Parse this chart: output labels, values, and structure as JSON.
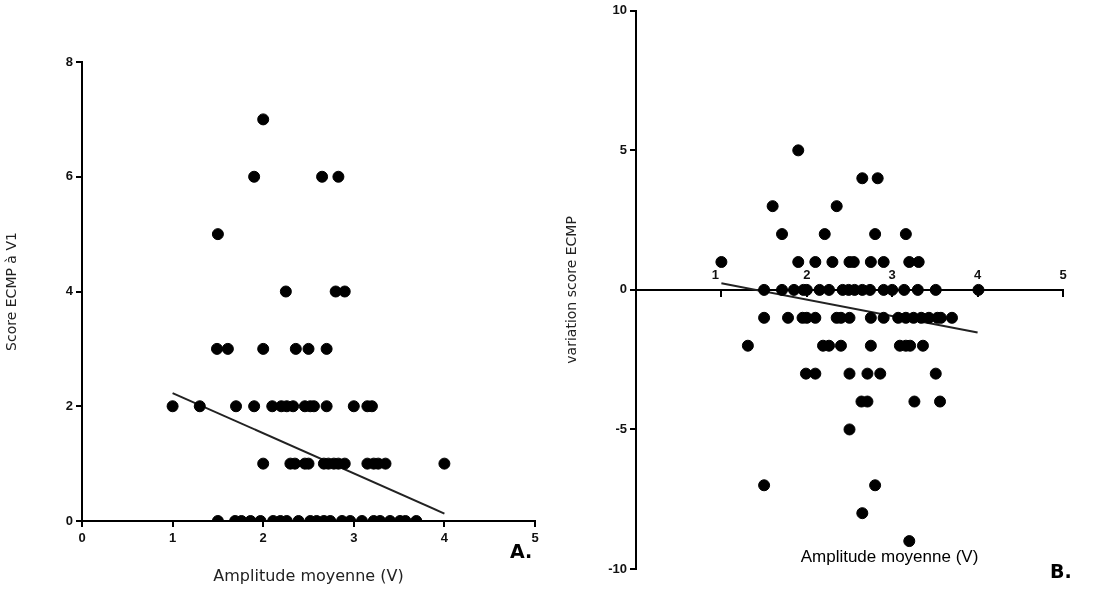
{
  "chart_data": [
    {
      "type": "scatter",
      "xlabel": "Amplitude moyenne (V)",
      "ylabel": "Score ECMP à V1",
      "xlim": [
        0,
        5
      ],
      "xticks": [
        0,
        1,
        2,
        3,
        4,
        5
      ],
      "ylim": [
        0,
        8
      ],
      "yticks": [
        0,
        2,
        4,
        6,
        8
      ],
      "grid": false,
      "legend": false,
      "marker": "circle",
      "annotations": [
        "A."
      ],
      "series": [
        {
          "type": "scatter",
          "color": "#000000",
          "x": [
            2.0,
            1.9,
            2.65,
            2.83,
            1.5,
            2.25,
            2.8,
            2.9,
            1.49,
            1.61,
            2.0,
            2.36,
            2.5,
            2.7,
            1.0,
            1.3,
            1.7,
            1.9,
            2.1,
            2.2,
            2.26,
            2.33,
            2.46,
            2.52,
            2.56,
            2.7,
            3.0,
            3.15,
            3.2,
            2.0,
            2.3,
            2.35,
            2.46,
            2.5,
            2.67,
            2.72,
            2.78,
            2.83,
            2.9,
            3.15,
            3.22,
            3.27,
            3.35,
            4.0,
            1.5,
            1.69,
            1.76,
            1.86,
            1.97,
            2.11,
            2.19,
            2.26,
            2.39,
            2.52,
            2.59,
            2.67,
            2.74,
            2.87,
            2.96,
            3.09,
            3.22,
            3.29,
            3.4,
            3.51,
            3.57,
            3.69
          ],
          "values": [
            7,
            6,
            6,
            6,
            5,
            4,
            4,
            4,
            3,
            3,
            3,
            3,
            3,
            3,
            2,
            2,
            2,
            2,
            2,
            2,
            2,
            2,
            2,
            2,
            2,
            2,
            2,
            2,
            2,
            1,
            1,
            1,
            1,
            1,
            1,
            1,
            1,
            1,
            1,
            1,
            1,
            1,
            1,
            1,
            0,
            0,
            0,
            0,
            0,
            0,
            0,
            0,
            0,
            0,
            0,
            0,
            0,
            0,
            0,
            0,
            0,
            0,
            0,
            0,
            0,
            0
          ]
        },
        {
          "type": "line",
          "color": "#222222",
          "marker": "none",
          "x": [
            1,
            4
          ],
          "values": [
            2.23,
            0.13
          ]
        }
      ]
    },
    {
      "type": "scatter",
      "xlabel": "Amplitude moyenne (V)",
      "ylabel": "variation score ECMP",
      "xlim": [
        0,
        5
      ],
      "xticks": [
        1,
        2,
        3,
        4,
        5
      ],
      "ylim": [
        -10,
        10
      ],
      "yticks": [
        -10,
        -5,
        0,
        5,
        10
      ],
      "grid": false,
      "legend": false,
      "marker": "circle",
      "annotations": [
        "B."
      ],
      "series": [
        {
          "type": "scatter",
          "color": "#000000",
          "x": [
            1.9,
            2.65,
            2.83,
            1.6,
            2.35,
            1.71,
            2.21,
            2.8,
            3.16,
            1.0,
            1.9,
            2.1,
            2.3,
            2.5,
            2.55,
            2.75,
            2.9,
            3.2,
            3.31,
            1.5,
            1.71,
            1.85,
            1.96,
            2.0,
            2.15,
            2.26,
            2.42,
            2.49,
            2.56,
            2.65,
            2.74,
            2.9,
            3.0,
            3.14,
            3.3,
            3.51,
            4.01,
            1.5,
            1.78,
            1.95,
            2.0,
            2.1,
            2.35,
            2.4,
            2.5,
            2.75,
            2.9,
            3.07,
            3.16,
            3.25,
            3.34,
            3.43,
            3.53,
            3.57,
            3.7,
            1.31,
            2.19,
            2.26,
            2.4,
            2.75,
            3.09,
            3.16,
            3.21,
            3.36,
            1.99,
            2.1,
            2.5,
            2.71,
            2.86,
            3.51,
            2.64,
            2.71,
            3.26,
            3.56,
            2.5,
            1.5,
            2.8,
            2.65,
            3.2
          ],
          "values": [
            5,
            4,
            4,
            3,
            3,
            2,
            2,
            2,
            2,
            1,
            1,
            1,
            1,
            1,
            1,
            1,
            1,
            1,
            1,
            0,
            0,
            0,
            0,
            0,
            0,
            0,
            0,
            0,
            0,
            0,
            0,
            0,
            0,
            0,
            0,
            0,
            0,
            -1,
            -1,
            -1,
            -1,
            -1,
            -1,
            -1,
            -1,
            -1,
            -1,
            -1,
            -1,
            -1,
            -1,
            -1,
            -1,
            -1,
            -1,
            -2,
            -2,
            -2,
            -2,
            -2,
            -2,
            -2,
            -2,
            -2,
            -3,
            -3,
            -3,
            -3,
            -3,
            -3,
            -4,
            -4,
            -4,
            -4,
            -5,
            -7,
            -7,
            -8,
            -9
          ]
        },
        {
          "type": "line",
          "color": "#222222",
          "marker": "none",
          "x": [
            1,
            4
          ],
          "values": [
            0.24,
            -1.53
          ]
        }
      ]
    }
  ]
}
